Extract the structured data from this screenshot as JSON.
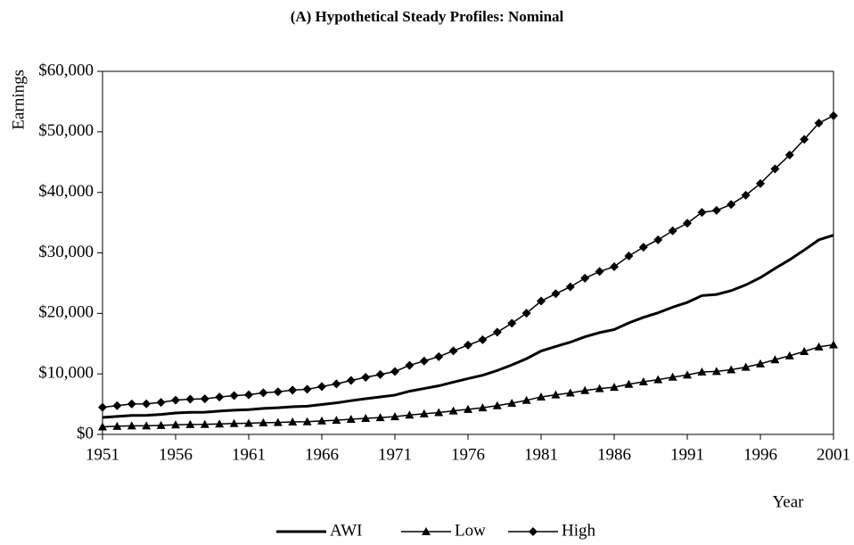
{
  "chart_data": {
    "type": "line",
    "title": "(A) Hypothetical Steady Profiles: Nominal",
    "y_label": "Earnings",
    "x_label": "Year",
    "x": [
      1951,
      1952,
      1953,
      1954,
      1955,
      1956,
      1957,
      1958,
      1959,
      1960,
      1961,
      1962,
      1963,
      1964,
      1965,
      1966,
      1967,
      1968,
      1969,
      1970,
      1971,
      1972,
      1973,
      1974,
      1975,
      1976,
      1977,
      1978,
      1979,
      1980,
      1981,
      1982,
      1983,
      1984,
      1985,
      1986,
      1987,
      1988,
      1989,
      1990,
      1991,
      1992,
      1993,
      1994,
      1995,
      1996,
      1997,
      1998,
      1999,
      2000,
      2001
    ],
    "xlim": [
      1951,
      2001
    ],
    "xticks": [
      1951,
      1956,
      1961,
      1966,
      1971,
      1976,
      1981,
      1986,
      1991,
      1996,
      2001
    ],
    "ylim": [
      0,
      60000
    ],
    "yticks": [
      {
        "value": 0,
        "label": "$0"
      },
      {
        "value": 10000,
        "label": "$10,000"
      },
      {
        "value": 20000,
        "label": "$20,000"
      },
      {
        "value": 30000,
        "label": "$30,000"
      },
      {
        "value": 40000,
        "label": "$40,000"
      },
      {
        "value": 50000,
        "label": "$50,000"
      },
      {
        "value": 60000,
        "label": "$60,000"
      }
    ],
    "grid": false,
    "legend": "bottom",
    "series": [
      {
        "name": "AWI",
        "color": "#000000",
        "marker": "none",
        "values": [
          2799,
          2973,
          3139,
          3156,
          3301,
          3532,
          3642,
          3674,
          3856,
          4007,
          4087,
          4291,
          4397,
          4576,
          4659,
          4938,
          5213,
          5572,
          5894,
          6186,
          6497,
          7134,
          7580,
          8031,
          8631,
          9226,
          9779,
          10556,
          11479,
          12513,
          13773,
          14531,
          15239,
          16135,
          16823,
          17322,
          18427,
          19334,
          20100,
          21028,
          21812,
          22935,
          23133,
          23754,
          24706,
          25914,
          27426,
          28861,
          30470,
          32155,
          32922
        ]
      },
      {
        "name": "Low",
        "color": "#000000",
        "marker": "triangle",
        "values": [
          1260,
          1338,
          1413,
          1420,
          1486,
          1590,
          1639,
          1653,
          1735,
          1803,
          1839,
          1931,
          1978,
          2059,
          2096,
          2222,
          2346,
          2507,
          2652,
          2784,
          2924,
          3210,
          3411,
          3614,
          3884,
          4152,
          4401,
          4750,
          5166,
          5631,
          6198,
          6539,
          6858,
          7261,
          7570,
          7795,
          8292,
          8700,
          9045,
          9463,
          9815,
          10321,
          10410,
          10689,
          11118,
          11661,
          12342,
          12988,
          13711,
          14470,
          14815
        ]
      },
      {
        "name": "High",
        "color": "#000000",
        "marker": "diamond",
        "values": [
          4479,
          4757,
          5023,
          5049,
          5282,
          5652,
          5827,
          5878,
          6169,
          6411,
          6539,
          6866,
          7035,
          7322,
          7454,
          7901,
          8342,
          8915,
          9430,
          9898,
          10395,
          11414,
          12128,
          12849,
          13809,
          14762,
          15647,
          16890,
          18367,
          20022,
          22037,
          23250,
          24383,
          25816,
          26916,
          27715,
          29482,
          30934,
          32159,
          33645,
          34899,
          36697,
          37012,
          38006,
          39529,
          41462,
          43882,
          46178,
          48752,
          51448,
          52675
        ]
      }
    ]
  }
}
